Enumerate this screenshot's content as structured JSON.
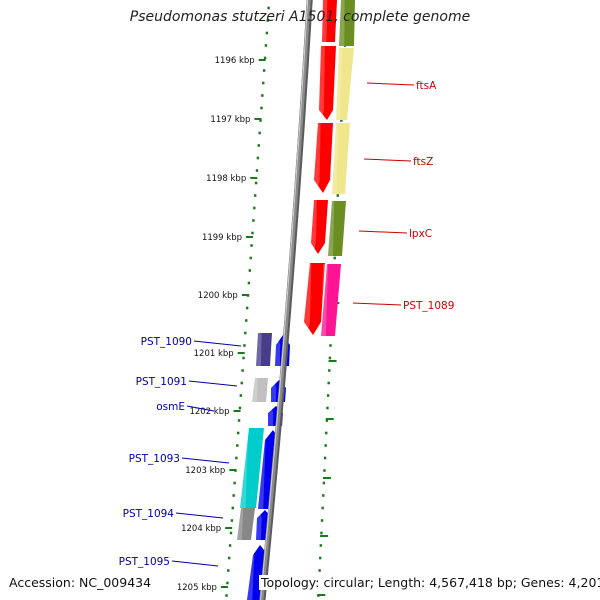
{
  "title": "Pseudomonas stutzeri A1501, complete genome",
  "footer": {
    "accession": "Accession: NC_009434",
    "summary": "Topology: circular; Length: 4,567,418 bp; Genes: 4,201"
  },
  "axis": {
    "unit": "kbp",
    "ticks": [
      "1196 kbp",
      "1197 kbp",
      "1198 kbp",
      "1199 kbp",
      "1200 kbp",
      "1201 kbp",
      "1202 kbp",
      "1203 kbp",
      "1204 kbp",
      "1205 kbp"
    ]
  },
  "colors": {
    "backbone": "#8a8a8a",
    "ring_dots": "#1a7a1a",
    "label_red": "#cc0000",
    "label_blue": "#0000aa",
    "gene_red": "#ff0000",
    "gene_blue": "#0000ee",
    "gene_olive": "#6b8e23",
    "gene_paleyellow": "#f0e68c",
    "gene_pink": "#ff1493",
    "gene_navy": "#483d8b",
    "gene_cyan": "#00cccc",
    "gene_gray": "#888888",
    "gene_lightgray": "#c0c0c0"
  },
  "genes_right": [
    {
      "name": "ftsA",
      "color_key": "label_red"
    },
    {
      "name": "ftsZ",
      "color_key": "label_red"
    },
    {
      "name": "lpxC",
      "color_key": "label_red"
    },
    {
      "name": "PST_1089",
      "color_key": "label_red"
    }
  ],
  "genes_left": [
    {
      "name": "PST_1090",
      "color_key": "label_blue"
    },
    {
      "name": "PST_1091",
      "color_key": "label_blue"
    },
    {
      "name": "osmE",
      "color_key": "label_blue"
    },
    {
      "name": "PST_1093",
      "color_key": "label_blue"
    },
    {
      "name": "PST_1094",
      "color_key": "label_blue"
    },
    {
      "name": "PST_1095",
      "color_key": "label_blue"
    }
  ]
}
